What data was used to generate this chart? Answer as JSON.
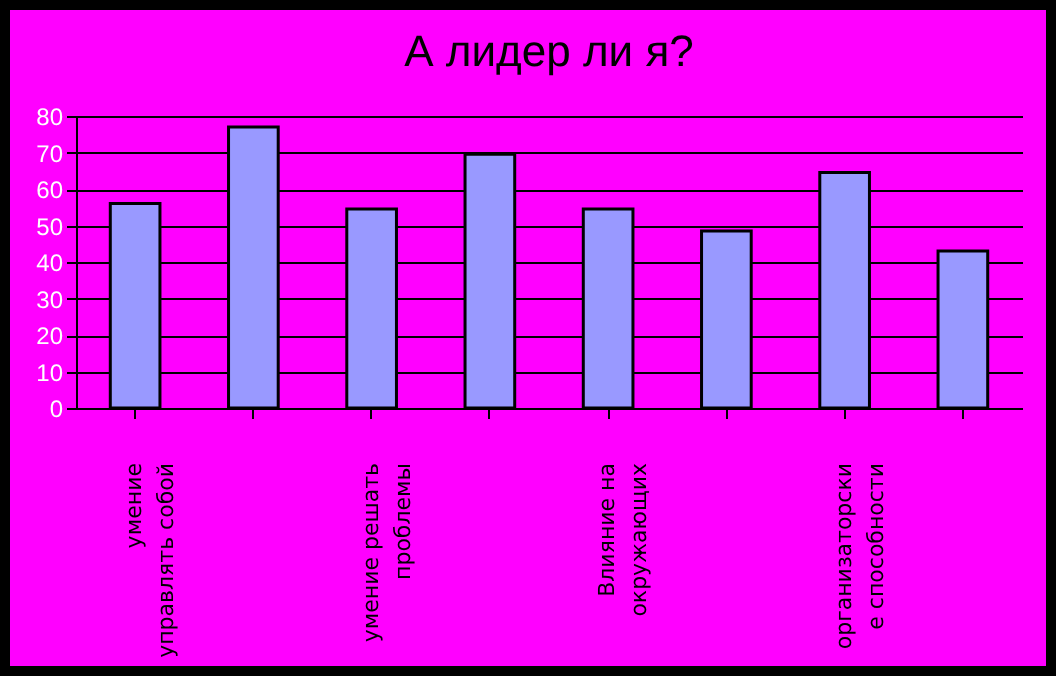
{
  "chart_data": {
    "type": "bar",
    "title": "А лидер ли  я?",
    "categories": [
      "умение\nуправлять собой",
      null,
      "умение решать\nпроблемы",
      null,
      "Влияние на\nокружающих",
      null,
      "организаторски\nе способности",
      null
    ],
    "values": [
      56,
      77,
      54.5,
      69.5,
      54.5,
      48.5,
      64.5,
      43
    ],
    "color": "#9999ff",
    "ylim": [
      0,
      80
    ],
    "yticks": [
      0,
      10,
      20,
      30,
      40,
      50,
      60,
      70,
      80
    ],
    "grid": "y"
  }
}
